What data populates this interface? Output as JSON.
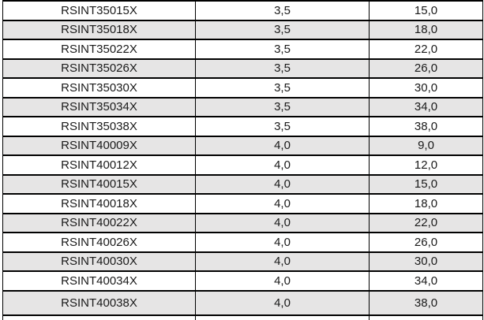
{
  "colors": {
    "row_shade": "#e6e5e5",
    "border": "#000000",
    "text": "#1a1a1a",
    "background": "#ffffff"
  },
  "table": {
    "rows": [
      [
        "RSINT35015X",
        "3,5",
        "15,0"
      ],
      [
        "RSINT35018X",
        "3,5",
        "18,0"
      ],
      [
        "RSINT35022X",
        "3,5",
        "22,0"
      ],
      [
        "RSINT35026X",
        "3,5",
        "26,0"
      ],
      [
        "RSINT35030X",
        "3,5",
        "30,0"
      ],
      [
        "RSINT35034X",
        "3,5",
        "34,0"
      ],
      [
        "RSINT35038X",
        "3,5",
        "38,0"
      ],
      [
        "RSINT40009X",
        "4,0",
        "9,0"
      ],
      [
        "RSINT40012X",
        "4,0",
        "12,0"
      ],
      [
        "RSINT40015X",
        "4,0",
        "15,0"
      ],
      [
        "RSINT40018X",
        "4,0",
        "18,0"
      ],
      [
        "RSINT40022X",
        "4,0",
        "22,0"
      ],
      [
        "RSINT40026X",
        "4,0",
        "26,0"
      ],
      [
        "RSINT40030X",
        "4,0",
        "30,0"
      ],
      [
        "RSINT40034X",
        "4,0",
        "34,0"
      ],
      [
        "RSINT40038X",
        "4,0",
        "38,0"
      ]
    ]
  }
}
